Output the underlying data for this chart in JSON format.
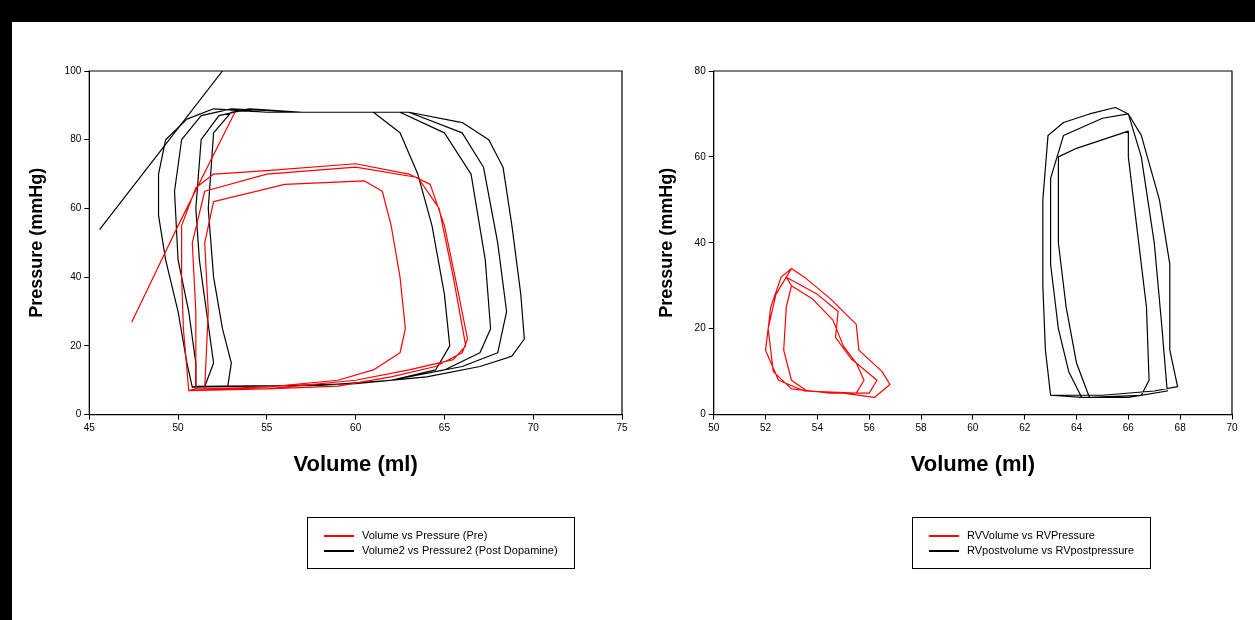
{
  "chart_data": [
    {
      "type": "line",
      "xlabel": "Volume (ml)",
      "ylabel": "Pressure (mmHg)",
      "xlim": [
        45,
        75
      ],
      "xticks": [
        45,
        50,
        55,
        60,
        65,
        70,
        75
      ],
      "ylim": [
        0,
        100
      ],
      "yticks": [
        0,
        20,
        40,
        60,
        80,
        100
      ],
      "grid": false,
      "legend": "bottom",
      "marker": "none",
      "line_style": "solid",
      "series": [
        {
          "name": "Volume vs Pressure (Pre)",
          "color": "#ff0000",
          "x": [
            47.4,
            50,
            53.2,
            null,
            50.6,
            55,
            59,
            62,
            64.5,
            66,
            66.3,
            65.8,
            65,
            64.2,
            63,
            60,
            55,
            52,
            51,
            50.2,
            50.2,
            50.3,
            50.6,
            51,
            55,
            60,
            63,
            65.5,
            66.2,
            65.5,
            64.7,
            63.5,
            60,
            55,
            51.5,
            50.8,
            51,
            51,
            51.5,
            55,
            59,
            61,
            62.5,
            62.8,
            62.5,
            62,
            61.5,
            60.5,
            56,
            52,
            51.5,
            51.7,
            51.5
          ],
          "values": [
            27,
            55,
            88,
            null,
            7,
            7.5,
            8.3,
            11,
            14,
            18,
            22,
            35,
            55,
            67,
            70,
            73,
            71,
            70,
            66,
            55,
            40,
            25,
            7,
            7.5,
            7.5,
            10,
            13,
            16,
            20,
            40,
            60,
            69,
            72,
            70,
            65,
            50,
            30,
            7.5,
            7.5,
            8,
            10,
            13,
            18,
            25,
            40,
            55,
            65,
            68,
            67,
            62,
            50,
            30,
            7.5
          ]
        },
        {
          "name": "Volume2 vs Pressure2 (Post Dopamine)",
          "color": "#000000",
          "x": [
            50.8,
            55,
            60,
            64,
            67,
            68.8,
            69.5,
            69.3,
            68.8,
            68.3,
            67.5,
            66,
            63,
            60,
            55,
            52,
            50.5,
            49.3,
            48.9,
            48.9,
            49.3,
            50,
            50.5,
            50.8,
            51,
            58,
            62,
            66,
            68,
            68.5,
            68,
            67.2,
            66,
            63,
            57,
            53,
            51.3,
            50.2,
            49.8,
            50,
            50.6,
            51,
            51,
            51.5,
            58,
            62,
            65,
            67,
            67.6,
            67.3,
            66.5,
            65,
            62.5,
            57,
            54,
            52.3,
            51.3,
            51,
            51.2,
            51.6,
            52,
            51.5,
            52.8,
            58,
            62,
            64.5,
            65.3,
            65,
            64.3,
            63.5,
            62.5,
            61,
            57,
            54,
            53,
            52,
            51.7,
            52,
            52.5,
            53,
            52.8
          ],
          "values": [
            8,
            8.3,
            9,
            11,
            14,
            17,
            22,
            35,
            55,
            72,
            80,
            85,
            88,
            88,
            88,
            89,
            86,
            80,
            70,
            58,
            45,
            30,
            15,
            8,
            8.2,
            8.5,
            10,
            14,
            18,
            30,
            50,
            72,
            82,
            88,
            88,
            89,
            87,
            80,
            65,
            45,
            30,
            15,
            8.2,
            8.2,
            8.5,
            10,
            13,
            18,
            25,
            45,
            70,
            82,
            88,
            88,
            89,
            87,
            80,
            60,
            45,
            30,
            15,
            8.2,
            8.3,
            8.5,
            10,
            13,
            20,
            35,
            55,
            70,
            82,
            88,
            88,
            89,
            88,
            82,
            60,
            40,
            25,
            15,
            8.3
          ]
        },
        {
          "color": "#000000",
          "x": [
            45.6,
            52.5
          ],
          "values": [
            54,
            100
          ]
        }
      ]
    },
    {
      "type": "line",
      "xlabel": "Volume (ml)",
      "ylabel": "Pressure (mmHg)",
      "xlim": [
        50,
        70
      ],
      "xticks": [
        50,
        52,
        54,
        56,
        58,
        60,
        62,
        64,
        66,
        68,
        70
      ],
      "ylim": [
        0,
        80
      ],
      "yticks": [
        0,
        20,
        40,
        60,
        80
      ],
      "grid": false,
      "legend": "bottom",
      "marker": "none",
      "line_style": "solid",
      "series": [
        {
          "name": "RVVolume vs RVPressure",
          "color": "#ff0000",
          "x": [
            53,
            53.5,
            54.5,
            55.5,
            55.6,
            56.5,
            56.8,
            56.2,
            55,
            53.5,
            52.5,
            52,
            52.2,
            52.6,
            53,
            52.8,
            54,
            54.8,
            54.7,
            55.3,
            56.3,
            56,
            54.5,
            53,
            52.3,
            52.1,
            52.4,
            52.8,
            53,
            53.8,
            54.6,
            55,
            55.5,
            55.8,
            55.5,
            53.6,
            53,
            52.7,
            52.8,
            53
          ],
          "values": [
            34,
            32,
            27,
            21,
            15,
            10,
            7,
            4,
            5,
            5.5,
            8,
            15,
            25,
            32,
            34,
            32,
            28,
            24,
            18,
            13,
            8,
            5,
            5,
            6,
            10,
            20,
            28,
            32,
            30,
            27,
            22,
            16,
            12,
            8,
            5,
            5.5,
            8,
            15,
            25,
            30
          ]
        },
        {
          "name": "RVpostvolume vs RVpostpressure",
          "color": "#000000",
          "x": [
            63,
            65,
            67,
            67.9,
            67.6,
            67.6,
            67.2,
            66.5,
            66,
            65.5,
            64.5,
            63.5,
            62.9,
            62.7,
            62.7,
            62.8,
            63,
            64.2,
            66,
            67.5,
            67.3,
            67,
            66.5,
            66,
            65,
            63.5,
            63,
            63,
            63.3,
            63.7,
            64.2,
            64.5,
            66.5,
            66.8,
            66.7,
            66.3,
            66,
            66,
            64,
            63.3,
            63.3,
            63.6,
            64,
            64.5
          ],
          "values": [
            4.5,
            4.5,
            5.5,
            6.5,
            15,
            35,
            50,
            65,
            70,
            71.5,
            70,
            68,
            65,
            50,
            30,
            15,
            4.5,
            4,
            4,
            5.5,
            20,
            40,
            60,
            70,
            69,
            65,
            55,
            35,
            20,
            10,
            4,
            4,
            4.5,
            8,
            25,
            45,
            60,
            66,
            62,
            60,
            40,
            25,
            12,
            4
          ]
        }
      ]
    }
  ]
}
